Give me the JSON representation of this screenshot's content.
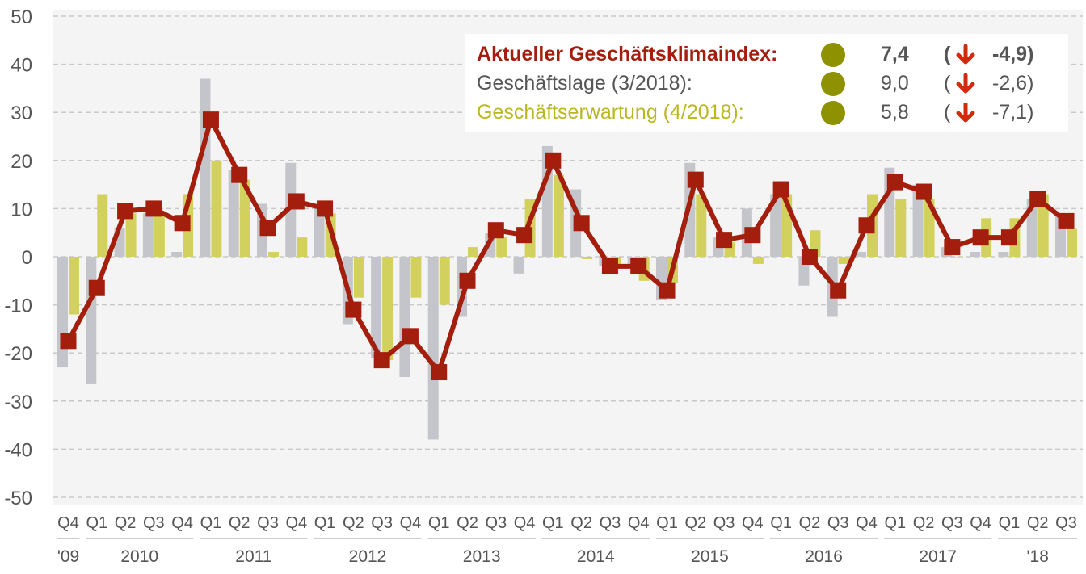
{
  "chart_data": {
    "type": "bar+line",
    "ylim": [
      -50,
      50
    ],
    "yticks": [
      50,
      40,
      30,
      20,
      10,
      0,
      -10,
      -20,
      -30,
      -40,
      -50
    ],
    "grid": true,
    "quarters": [
      "Q4",
      "Q1",
      "Q2",
      "Q3",
      "Q4",
      "Q1",
      "Q2",
      "Q3",
      "Q4",
      "Q1",
      "Q2",
      "Q3",
      "Q4",
      "Q1",
      "Q2",
      "Q3",
      "Q4",
      "Q1",
      "Q2",
      "Q3",
      "Q4",
      "Q1",
      "Q2",
      "Q3",
      "Q4",
      "Q1",
      "Q2",
      "Q3",
      "Q4",
      "Q1",
      "Q2",
      "Q3",
      "Q4",
      "Q1",
      "Q2",
      "Q3"
    ],
    "year_groups": [
      {
        "label": "'09",
        "start": 0,
        "end": 0
      },
      {
        "label": "2010",
        "start": 1,
        "end": 4
      },
      {
        "label": "2011",
        "start": 5,
        "end": 8
      },
      {
        "label": "2012",
        "start": 9,
        "end": 12
      },
      {
        "label": "2013",
        "start": 13,
        "end": 16
      },
      {
        "label": "2014",
        "start": 17,
        "end": 20
      },
      {
        "label": "2015",
        "start": 21,
        "end": 24
      },
      {
        "label": "2016",
        "start": 25,
        "end": 28
      },
      {
        "label": "2017",
        "start": 29,
        "end": 32
      },
      {
        "label": "'18",
        "start": 33,
        "end": 35
      }
    ],
    "series": [
      {
        "name": "Geschäftslage",
        "kind": "bar",
        "color": "#c4c5cb",
        "values": [
          -23,
          -26.5,
          6,
          9,
          1,
          37,
          18,
          11,
          19.5,
          10,
          -14,
          -21,
          -25,
          -38,
          -12.5,
          5,
          -3.5,
          23,
          14,
          -2,
          -2.5,
          -9,
          19.5,
          4,
          10,
          13,
          -6,
          -12.5,
          1,
          18.5,
          15,
          2,
          1,
          1,
          12,
          9
        ]
      },
      {
        "name": "Geschäftserwartung",
        "kind": "bar",
        "color": "#d3d15d",
        "values": [
          -12,
          13,
          9,
          9,
          13,
          20,
          16,
          1,
          4,
          9,
          -8.5,
          -21.5,
          -8.5,
          -10,
          2,
          4,
          12,
          17,
          -0.5,
          -2.5,
          -5,
          -5.5,
          13,
          3,
          -1.5,
          13,
          5.5,
          -1.5,
          13,
          12,
          12,
          0,
          8,
          8,
          13,
          5.8
        ]
      },
      {
        "name": "Geschäftsklimaindex",
        "kind": "line",
        "color": "#a31e0c",
        "values": [
          -17.5,
          -6.5,
          9.5,
          10,
          7,
          28.5,
          17,
          6,
          11.5,
          10,
          -11,
          -21.5,
          -16.5,
          -24,
          -5,
          5.5,
          4.5,
          20,
          7,
          -2,
          -2,
          -7,
          16,
          3.5,
          4.5,
          14,
          0,
          -7,
          6.5,
          15.5,
          13.5,
          2,
          4,
          4,
          12,
          7.4
        ]
      }
    ]
  },
  "legend": {
    "rows": [
      {
        "label": "Aktueller Geschäftsklimaindex:",
        "value": "7,4",
        "paren": "(",
        "change": "-4,9)",
        "label_color": "#a31e0c",
        "text_color": "#555555",
        "bold": true
      },
      {
        "label": "Geschäftslage (3/2018):",
        "value": "9,0",
        "paren": "(",
        "change": "-2,6)",
        "label_color": "#555555",
        "text_color": "#555555",
        "bold": false
      },
      {
        "label": "Geschäftserwartung (4/2018):",
        "value": "5,8",
        "paren": "(",
        "change": "-7,1)",
        "label_color": "#b9b820",
        "text_color": "#555555",
        "bold": false
      }
    ],
    "dot_color": "#8f9200",
    "arrow_icon": "arrow-down-icon",
    "arrow_color": "#d12a0c"
  },
  "colors": {
    "plot_bg": "#f4f4f4",
    "grid": "#c9c9c9",
    "axis_text": "#555555"
  }
}
